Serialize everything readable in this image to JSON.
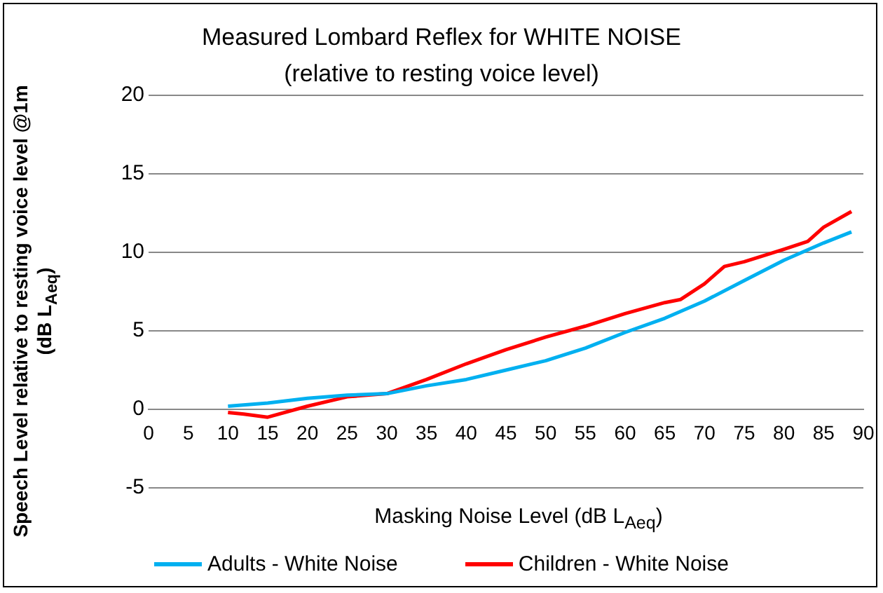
{
  "chart_data": {
    "type": "line",
    "title": "Measured  Lombard Reflex for WHITE NOISE",
    "subtitle": "(relative to resting voice level)",
    "xlabel": "Masking Noise Level (dB L$_{Aeq}$)",
    "ylabel": "Speech Level relative to resting voice level @1m (dB L$_{Aeq}$)",
    "xlim": [
      0,
      90
    ],
    "xticks": [
      0,
      5,
      10,
      15,
      20,
      25,
      30,
      35,
      40,
      45,
      50,
      55,
      60,
      65,
      70,
      75,
      80,
      85,
      90
    ],
    "ylim": [
      -5,
      20
    ],
    "yticks": [
      -5,
      0,
      5,
      10,
      15,
      20
    ],
    "grid": "y",
    "legend": "bottom",
    "marker": "none",
    "series": [
      {
        "name": "Adults - White Noise",
        "color": "#00b0f0",
        "x": [
          10,
          15,
          20,
          25,
          30,
          35,
          40,
          45,
          50,
          55,
          60,
          65,
          70,
          75,
          80,
          85,
          88.5
        ],
        "values": [
          0.2,
          0.4,
          0.7,
          0.9,
          1.0,
          1.5,
          1.9,
          2.5,
          3.1,
          3.9,
          4.9,
          5.8,
          6.9,
          8.2,
          9.5,
          10.6,
          11.3
        ]
      },
      {
        "name": "Children - White Noise",
        "color": "#ff0000",
        "x": [
          10,
          12,
          15,
          20,
          25,
          30,
          35,
          40,
          45,
          50,
          55,
          60,
          65,
          67,
          70,
          72.5,
          75,
          80,
          83,
          85,
          88.5
        ],
        "values": [
          -0.2,
          -0.3,
          -0.5,
          0.2,
          0.8,
          1.0,
          1.9,
          2.9,
          3.8,
          4.6,
          5.3,
          6.1,
          6.8,
          7.0,
          8.0,
          9.1,
          9.4,
          10.2,
          10.7,
          11.6,
          12.6
        ]
      }
    ]
  }
}
